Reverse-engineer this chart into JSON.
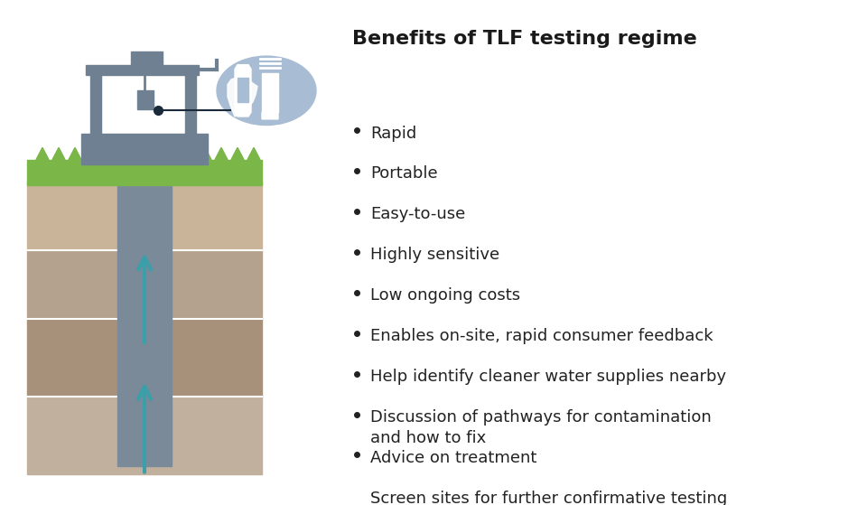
{
  "title": "Benefits of TLF testing regime",
  "title_fontsize": 16,
  "title_color": "#1a1a1a",
  "bullet_points": [
    "Rapid",
    "Portable",
    "Easy-to-use",
    "Highly sensitive",
    "Low ongoing costs",
    "Enables on-site, rapid consumer feedback",
    "Help identify cleaner water supplies nearby",
    "Discussion of pathways for contamination\nand how to fix",
    "Advice on treatment",
    "Screen sites for further confirmative testing"
  ],
  "bullet_fontsize": 13,
  "bullet_color": "#222222",
  "background_color": "#ffffff",
  "soil_layer1_color": "#c9b49a",
  "soil_layer2_color": "#b5a28e",
  "soil_layer3_color": "#a8917a",
  "soil_layer4_color": "#c2b09e",
  "pipe_color": "#7a8a99",
  "grass_color": "#7ab648",
  "arrow_color": "#3a9fa8",
  "ellipse_bg_color": "#a8bdd4",
  "well_structure_color": "#6e8092"
}
